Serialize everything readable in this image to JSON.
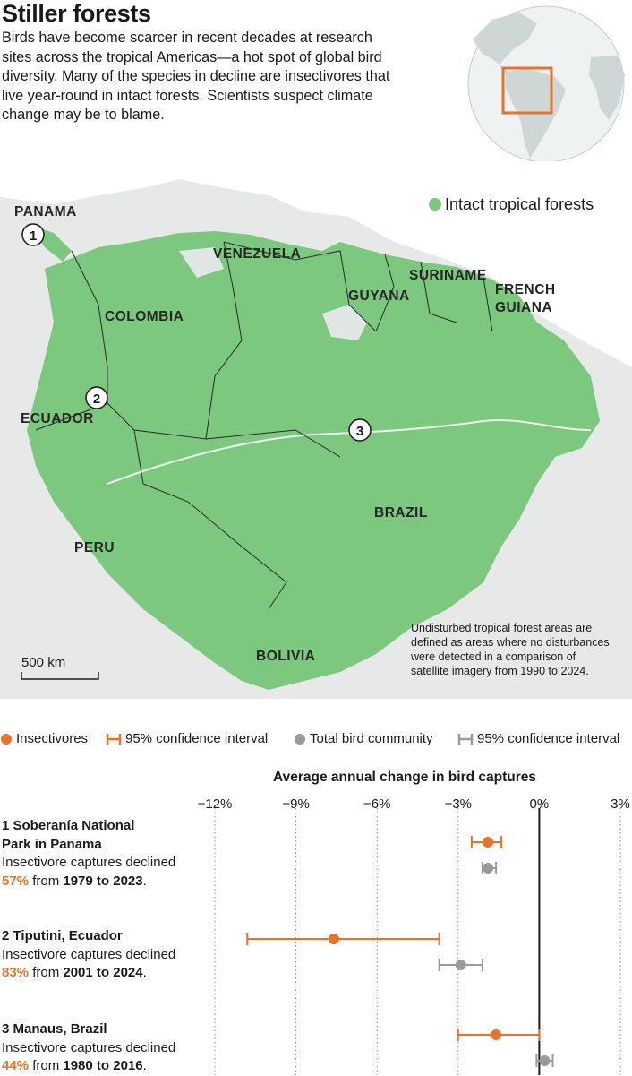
{
  "header": {
    "title": "Stiller forests",
    "intro": "Birds have become scarcer in recent decades at research sites across the tropical Americas—a hot spot of global bird diversity. Many of the species in decline are insectivores that live year-round in intact forests. Scientists suspect climate change may be to blame."
  },
  "map": {
    "legend_label": "Intact tropical forests",
    "forest_color": "#7cc87e",
    "countries": [
      "PANAMA",
      "VENEZUELA",
      "SURINAME",
      "FRENCH",
      "GUIANA",
      "GUYANA",
      "COLOMBIA",
      "ECUADOR",
      "BRAZIL",
      "PERU",
      "BOLIVIA"
    ],
    "markers": [
      "1",
      "2",
      "3"
    ],
    "scale_label": "500 km",
    "note": [
      "Undisturbed tropical forest areas are",
      "defined as areas where no disturbances",
      "were detected in a comparison of",
      "satellite imagery from 1990 to 2024."
    ]
  },
  "legend": {
    "insectivores": "Insectivores",
    "ci_insect": "95% confidence interval",
    "total": "Total bird community",
    "ci_total": "95% confidence interval"
  },
  "colors": {
    "insectivores": "#e8732a",
    "total": "#9a9a9a",
    "forest": "#7cc87e",
    "land": "#e6e9e8"
  },
  "sites": [
    {
      "name_lines": [
        "1 Soberanía National",
        "Park in Panama"
      ],
      "desc": "Insectivore captures declined",
      "pct": "57%",
      "from_word": "from",
      "years": "1979 to 2023",
      "period": "."
    },
    {
      "name_lines": [
        "2 Tiputini, Ecuador"
      ],
      "desc": "Insectivore captures declined",
      "pct": "83%",
      "from_word": "from",
      "years": "2001 to 2024",
      "period": "."
    },
    {
      "name_lines": [
        "3 Manaus, Brazil"
      ],
      "desc": "Insectivore captures declined",
      "pct": "44%",
      "from_word": "from",
      "years": "1980 to 2016",
      "period": "."
    }
  ],
  "chart_data": {
    "type": "scatter",
    "title": "Average annual change in bird captures",
    "xlabel": "",
    "ylabel": "",
    "xlim": [
      -13.5,
      3.5
    ],
    "x_ticks": [
      -12,
      -9,
      -6,
      -3,
      0,
      3
    ],
    "x_tick_labels": [
      "−12%",
      "−9%",
      "−6%",
      "−3%",
      "0%",
      "3%"
    ],
    "categories": [
      "Soberánia National Park in Panama",
      "Tiputini, Ecuador",
      "Manaus, Brazil"
    ],
    "series": [
      {
        "name": "Insectivores",
        "values": [
          -1.9,
          -7.6,
          -1.6
        ],
        "ci_low": [
          -2.5,
          -10.8,
          -3.0
        ],
        "ci_high": [
          -1.4,
          -3.7,
          0.0
        ]
      },
      {
        "name": "Total bird community",
        "values": [
          -1.9,
          -2.9,
          0.2
        ],
        "ci_low": [
          -2.1,
          -3.7,
          -0.1
        ],
        "ci_high": [
          -1.6,
          -2.1,
          0.5
        ]
      }
    ]
  }
}
